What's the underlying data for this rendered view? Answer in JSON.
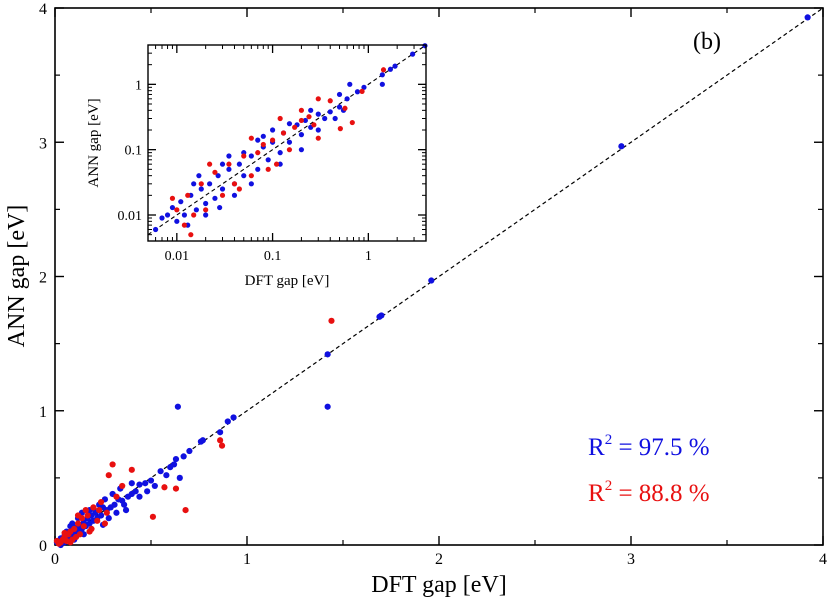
{
  "chart_data": [
    {
      "type": "scatter",
      "panel_label": "(b)",
      "xlabel": "DFT gap [eV]",
      "ylabel": "ANN gap [eV]",
      "xlim": [
        0,
        4
      ],
      "ylim": [
        0,
        4
      ],
      "xticks": [
        "0",
        "1",
        "2",
        "3",
        "4"
      ],
      "yticks": [
        "0",
        "1",
        "2",
        "3",
        "4"
      ],
      "reference_line": {
        "style": "dashed",
        "x": [
          0,
          4
        ],
        "y": [
          0,
          4
        ]
      },
      "annotations": [
        {
          "text": "R",
          "sup": "2",
          "value": " = 97.5 %",
          "color": "#1010e0"
        },
        {
          "text": "R",
          "sup": "2",
          "value": " = 88.8 %",
          "color": "#e81010"
        }
      ],
      "series": [
        {
          "color": "#1010e0",
          "points": [
            [
              3.92,
              3.93
            ],
            [
              2.95,
              2.97
            ],
            [
              1.96,
              1.97
            ],
            [
              1.69,
              1.7
            ],
            [
              1.7,
              1.71
            ],
            [
              1.42,
              1.42
            ],
            [
              1.42,
              1.03
            ],
            [
              0.64,
              1.03
            ],
            [
              0.93,
              0.95
            ],
            [
              0.9,
              0.92
            ],
            [
              0.86,
              0.84
            ],
            [
              0.77,
              0.78
            ],
            [
              0.76,
              0.77
            ],
            [
              0.7,
              0.7
            ],
            [
              0.67,
              0.66
            ],
            [
              0.63,
              0.64
            ],
            [
              0.62,
              0.6
            ],
            [
              0.6,
              0.58
            ],
            [
              0.55,
              0.55
            ],
            [
              0.5,
              0.48
            ],
            [
              0.47,
              0.46
            ],
            [
              0.44,
              0.45
            ],
            [
              0.42,
              0.4
            ],
            [
              0.4,
              0.38
            ],
            [
              0.38,
              0.36
            ],
            [
              0.35,
              0.33
            ],
            [
              0.33,
              0.34
            ],
            [
              0.31,
              0.3
            ],
            [
              0.29,
              0.28
            ],
            [
              0.27,
              0.26
            ],
            [
              0.25,
              0.28
            ],
            [
              0.24,
              0.22
            ],
            [
              0.22,
              0.2
            ],
            [
              0.21,
              0.24
            ],
            [
              0.2,
              0.18
            ],
            [
              0.19,
              0.22
            ],
            [
              0.18,
              0.16
            ],
            [
              0.17,
              0.2
            ],
            [
              0.16,
              0.14
            ],
            [
              0.15,
              0.17
            ],
            [
              0.14,
              0.12
            ],
            [
              0.13,
              0.15
            ],
            [
              0.12,
              0.1
            ],
            [
              0.11,
              0.13
            ],
            [
              0.1,
              0.08
            ],
            [
              0.09,
              0.11
            ],
            [
              0.08,
              0.06
            ],
            [
              0.07,
              0.09
            ],
            [
              0.06,
              0.05
            ],
            [
              0.05,
              0.07
            ],
            [
              0.04,
              0.03
            ],
            [
              0.03,
              0.05
            ],
            [
              0.02,
              0.02
            ],
            [
              0.01,
              0.02
            ],
            [
              0.3,
              0.38
            ],
            [
              0.36,
              0.3
            ],
            [
              0.26,
              0.34
            ],
            [
              0.23,
              0.3
            ],
            [
              0.2,
              0.27
            ],
            [
              0.44,
              0.36
            ],
            [
              0.52,
              0.44
            ],
            [
              0.58,
              0.52
            ],
            [
              0.65,
              0.5
            ],
            [
              0.28,
              0.2
            ],
            [
              0.32,
              0.24
            ],
            [
              0.12,
              0.2
            ],
            [
              0.18,
              0.26
            ],
            [
              0.08,
              0.14
            ],
            [
              0.06,
              0.1
            ],
            [
              0.05,
              0.02
            ],
            [
              0.03,
              0.0
            ],
            [
              0.15,
              0.08
            ],
            [
              0.1,
              0.04
            ],
            [
              0.4,
              0.46
            ],
            [
              0.48,
              0.4
            ],
            [
              0.34,
              0.42
            ],
            [
              0.37,
              0.26
            ],
            [
              0.25,
              0.15
            ],
            [
              0.14,
              0.24
            ],
            [
              0.09,
              0.16
            ]
          ]
        },
        {
          "color": "#e81010",
          "points": [
            [
              1.44,
              1.67
            ],
            [
              0.86,
              0.78
            ],
            [
              0.87,
              0.74
            ],
            [
              0.68,
              0.26
            ],
            [
              0.63,
              0.42
            ],
            [
              0.57,
              0.43
            ],
            [
              0.51,
              0.21
            ],
            [
              0.4,
              0.56
            ],
            [
              0.35,
              0.44
            ],
            [
              0.3,
              0.6
            ],
            [
              0.28,
              0.52
            ],
            [
              0.27,
              0.24
            ],
            [
              0.24,
              0.32
            ],
            [
              0.22,
              0.18
            ],
            [
              0.2,
              0.28
            ],
            [
              0.18,
              0.1
            ],
            [
              0.17,
              0.22
            ],
            [
              0.15,
              0.14
            ],
            [
              0.14,
              0.2
            ],
            [
              0.13,
              0.08
            ],
            [
              0.12,
              0.16
            ],
            [
              0.11,
              0.06
            ],
            [
              0.1,
              0.12
            ],
            [
              0.09,
              0.04
            ],
            [
              0.08,
              0.1
            ],
            [
              0.07,
              0.08
            ],
            [
              0.06,
              0.03
            ],
            [
              0.05,
              0.06
            ],
            [
              0.04,
              0.04
            ],
            [
              0.03,
              0.02
            ],
            [
              0.02,
              0.01
            ],
            [
              0.01,
              0.03
            ],
            [
              0.16,
              0.26
            ],
            [
              0.19,
              0.12
            ],
            [
              0.23,
              0.26
            ],
            [
              0.32,
              0.36
            ],
            [
              0.26,
              0.16
            ],
            [
              0.12,
              0.22
            ],
            [
              0.08,
              0.02
            ],
            [
              0.05,
              0.09
            ]
          ]
        }
      ]
    },
    {
      "type": "scatter",
      "xscale": "log",
      "yscale": "log",
      "xlabel": "DFT gap [eV]",
      "ylabel": "ANN gap [eV]",
      "xlim": [
        0.005,
        4
      ],
      "ylim": [
        0.004,
        4
      ],
      "xticks": [
        "0.01",
        "0.1",
        "1"
      ],
      "yticks": [
        "0.01",
        "0.1",
        "1"
      ],
      "reference_line": {
        "style": "dashed"
      },
      "series": [
        {
          "color": "#1010e0",
          "points": [
            [
              3.9,
              3.9
            ],
            [
              2.9,
              2.9
            ],
            [
              1.9,
              1.9
            ],
            [
              1.7,
              1.7
            ],
            [
              1.4,
              1.4
            ],
            [
              1.4,
              1.0
            ],
            [
              0.64,
              1.0
            ],
            [
              0.9,
              0.9
            ],
            [
              0.77,
              0.77
            ],
            [
              0.6,
              0.6
            ],
            [
              0.5,
              0.45
            ],
            [
              0.4,
              0.38
            ],
            [
              0.35,
              0.3
            ],
            [
              0.3,
              0.35
            ],
            [
              0.25,
              0.22
            ],
            [
              0.22,
              0.28
            ],
            [
              0.2,
              0.17
            ],
            [
              0.18,
              0.24
            ],
            [
              0.15,
              0.13
            ],
            [
              0.13,
              0.18
            ],
            [
              0.12,
              0.09
            ],
            [
              0.1,
              0.13
            ],
            [
              0.09,
              0.07
            ],
            [
              0.08,
              0.11
            ],
            [
              0.07,
              0.05
            ],
            [
              0.06,
              0.08
            ],
            [
              0.05,
              0.04
            ],
            [
              0.045,
              0.06
            ],
            [
              0.04,
              0.03
            ],
            [
              0.035,
              0.05
            ],
            [
              0.03,
              0.025
            ],
            [
              0.027,
              0.04
            ],
            [
              0.025,
              0.018
            ],
            [
              0.022,
              0.03
            ],
            [
              0.02,
              0.015
            ],
            [
              0.018,
              0.025
            ],
            [
              0.016,
              0.012
            ],
            [
              0.014,
              0.02
            ],
            [
              0.012,
              0.01
            ],
            [
              0.011,
              0.016
            ],
            [
              0.01,
              0.008
            ],
            [
              0.009,
              0.013
            ],
            [
              0.008,
              0.01
            ],
            [
              0.007,
              0.009
            ],
            [
              0.006,
              0.006
            ],
            [
              0.3,
              0.2
            ],
            [
              0.25,
              0.4
            ],
            [
              0.15,
              0.25
            ],
            [
              0.12,
              0.06
            ],
            [
              0.08,
              0.16
            ],
            [
              0.06,
              0.03
            ],
            [
              0.05,
              0.09
            ],
            [
              0.04,
              0.02
            ],
            [
              0.03,
              0.06
            ],
            [
              0.02,
              0.01
            ],
            [
              0.015,
              0.03
            ],
            [
              0.013,
              0.007
            ],
            [
              0.2,
              0.1
            ],
            [
              0.1,
              0.2
            ],
            [
              0.07,
              0.14
            ],
            [
              0.45,
              0.3
            ],
            [
              0.5,
              0.7
            ],
            [
              0.55,
              0.4
            ],
            [
              0.028,
              0.013
            ],
            [
              0.017,
              0.04
            ],
            [
              0.035,
              0.08
            ]
          ]
        },
        {
          "color": "#e81010",
          "points": [
            [
              1.44,
              1.67
            ],
            [
              0.86,
              0.78
            ],
            [
              0.68,
              0.26
            ],
            [
              0.57,
              0.43
            ],
            [
              0.51,
              0.21
            ],
            [
              0.4,
              0.56
            ],
            [
              0.3,
              0.6
            ],
            [
              0.27,
              0.24
            ],
            [
              0.24,
              0.32
            ],
            [
              0.2,
              0.28
            ],
            [
              0.17,
              0.22
            ],
            [
              0.15,
              0.1
            ],
            [
              0.13,
              0.18
            ],
            [
              0.11,
              0.06
            ],
            [
              0.1,
              0.14
            ],
            [
              0.09,
              0.05
            ],
            [
              0.08,
              0.12
            ],
            [
              0.07,
              0.09
            ],
            [
              0.06,
              0.04
            ],
            [
              0.05,
              0.08
            ],
            [
              0.04,
              0.03
            ],
            [
              0.035,
              0.06
            ],
            [
              0.03,
              0.02
            ],
            [
              0.025,
              0.045
            ],
            [
              0.02,
              0.012
            ],
            [
              0.018,
              0.03
            ],
            [
              0.015,
              0.01
            ],
            [
              0.013,
              0.02
            ],
            [
              0.012,
              0.007
            ],
            [
              0.01,
              0.012
            ],
            [
              0.009,
              0.018
            ],
            [
              0.3,
              0.15
            ],
            [
              0.2,
              0.4
            ],
            [
              0.12,
              0.3
            ],
            [
              0.06,
              0.15
            ],
            [
              0.045,
              0.025
            ],
            [
              0.022,
              0.06
            ],
            [
              0.014,
              0.005
            ]
          ]
        }
      ]
    }
  ]
}
